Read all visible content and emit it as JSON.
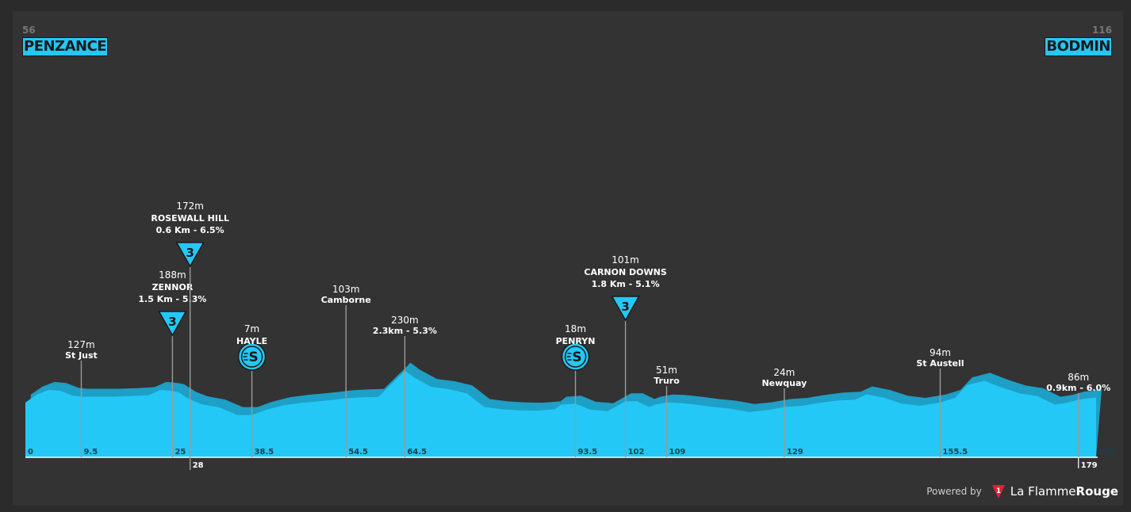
{
  "chart_data": {
    "type": "area",
    "title": "",
    "xlabel": "",
    "ylabel": "",
    "xlim": [
      0,
      182
    ],
    "ylim": [
      0,
      600
    ],
    "start": {
      "name": "PENZANCE",
      "altitude": "56"
    },
    "finish": {
      "name": "BODMIN",
      "altitude": "116"
    },
    "profile": {
      "x": [
        0,
        2,
        4,
        6,
        8,
        9.5,
        12,
        15,
        18,
        21,
        23,
        25,
        26,
        28,
        30,
        33,
        36,
        38.5,
        41,
        44,
        47,
        50,
        52,
        54.5,
        57,
        60,
        62,
        64,
        64.5,
        66,
        69,
        72,
        75,
        78,
        81,
        84,
        87,
        90,
        91,
        93.5,
        96,
        99,
        102,
        104,
        106,
        107,
        109,
        111,
        114,
        117,
        120,
        123,
        126,
        129,
        132,
        135,
        138,
        141,
        143,
        146,
        149,
        152,
        155.5,
        158,
        160,
        163,
        166,
        169,
        172,
        175,
        177,
        179,
        182
      ],
      "y": [
        60,
        95,
        115,
        110,
        90,
        85,
        85,
        85,
        88,
        92,
        115,
        110,
        105,
        72,
        52,
        38,
        5,
        5,
        28,
        48,
        58,
        65,
        70,
        78,
        82,
        84,
        135,
        185,
        200,
        170,
        128,
        118,
        100,
        40,
        30,
        25,
        24,
        30,
        50,
        55,
        28,
        22,
        65,
        65,
        40,
        50,
        60,
        58,
        50,
        40,
        32,
        18,
        26,
        40,
        45,
        58,
        68,
        72,
        95,
        80,
        55,
        45,
        60,
        80,
        135,
        155,
        125,
        100,
        88,
        50,
        58,
        72,
        82
      ]
    },
    "climbs": [
      {
        "name": "ZENNOR",
        "altitude": "188m",
        "detail": "1.5 Km - 5.3%",
        "km": 25,
        "category": "3"
      },
      {
        "name": "ROSEWALL HILL",
        "altitude": "172m",
        "detail": "0.6 Km - 6.5%",
        "km": 28,
        "category": "3"
      },
      {
        "name": "CARNON DOWNS",
        "altitude": "101m",
        "detail": "1.8 Km - 5.1%",
        "km": 102,
        "category": "3"
      }
    ],
    "sprints": [
      {
        "name": "HAYLE",
        "altitude": "7m",
        "km": 38.5
      },
      {
        "name": "PENRYN",
        "altitude": "18m",
        "km": 93.5
      }
    ],
    "places": [
      {
        "name": "St Just",
        "altitude": "127m",
        "km": 9.5
      },
      {
        "name": "Camborne",
        "altitude": "103m",
        "km": 54.5
      },
      {
        "name": "2.3km - 5.3%",
        "altitude": "230m",
        "km": 64.5
      },
      {
        "name": "Truro",
        "altitude": "51m",
        "km": 109
      },
      {
        "name": "Newquay",
        "altitude": "24m",
        "km": 129
      },
      {
        "name": "St Austell",
        "altitude": "94m",
        "km": 155.5
      },
      {
        "name": "0.9km - 6.0%",
        "altitude": "86m",
        "km": 179
      }
    ],
    "km_ticks": [
      {
        "label": "0",
        "km": 0
      },
      {
        "label": "9.5",
        "km": 9.5
      },
      {
        "label": "25",
        "km": 25
      },
      {
        "label": "28",
        "km": 28,
        "below": true
      },
      {
        "label": "38.5",
        "km": 38.5
      },
      {
        "label": "54.5",
        "km": 54.5
      },
      {
        "label": "64.5",
        "km": 64.5
      },
      {
        "label": "93.5",
        "km": 93.5
      },
      {
        "label": "102",
        "km": 102
      },
      {
        "label": "109",
        "km": 109
      },
      {
        "label": "129",
        "km": 129
      },
      {
        "label": "155.5",
        "km": 155.5
      },
      {
        "label": "179",
        "km": 179,
        "below": true
      },
      {
        "label": "182",
        "km": 182
      }
    ],
    "colors": {
      "profile_fill": "#23c8f6",
      "profile_shadow": "#1d9fc6",
      "background": "#333333",
      "marker_line": "#9a9a9a",
      "text": "#ffffff"
    }
  },
  "footer": {
    "powered_label": "Powered by",
    "brand_regular": "La Flamme",
    "brand_bold": "Rouge",
    "brand_icon": "flamme-rouge-icon",
    "brand_color": "#e0223a"
  }
}
